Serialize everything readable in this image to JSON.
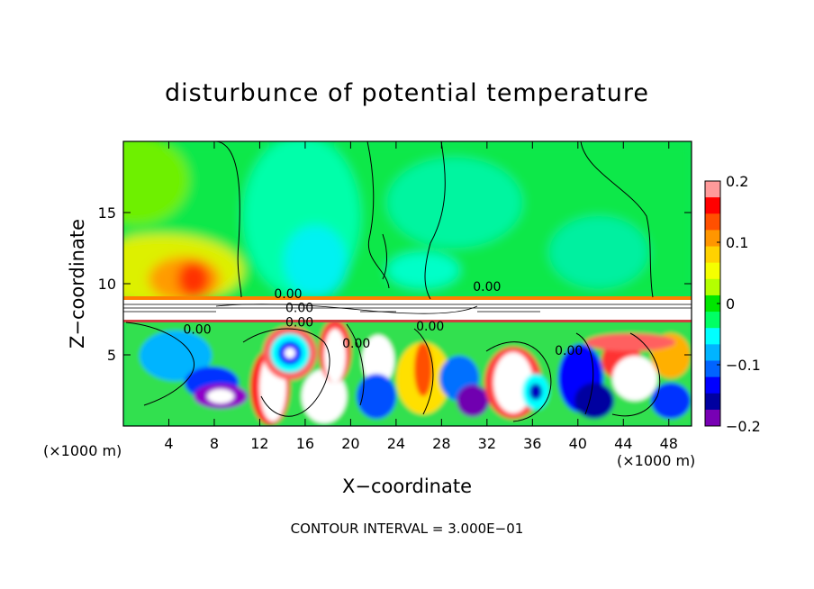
{
  "chart_data": {
    "type": "heatmap",
    "title": "disturbunce of potential temperature",
    "xlabel": "X−coordinate",
    "ylabel": "Z−coordinate",
    "x_unit_left": "(×1000 m)",
    "x_unit_right": "(×1000 m)",
    "xlim": [
      0,
      50
    ],
    "ylim": [
      0,
      20
    ],
    "xticks": [
      {
        "value": 4,
        "label": "4"
      },
      {
        "value": 8,
        "label": "8"
      },
      {
        "value": 12,
        "label": "12"
      },
      {
        "value": 16,
        "label": "16"
      },
      {
        "value": 20,
        "label": "20"
      },
      {
        "value": 24,
        "label": "24"
      },
      {
        "value": 28,
        "label": "28"
      },
      {
        "value": 32,
        "label": "32"
      },
      {
        "value": 36,
        "label": "36"
      },
      {
        "value": 40,
        "label": "40"
      },
      {
        "value": 44,
        "label": "44"
      },
      {
        "value": 48,
        "label": "48"
      }
    ],
    "yticks": [
      {
        "value": 5,
        "label": "5"
      },
      {
        "value": 10,
        "label": "10"
      },
      {
        "value": 15,
        "label": "15"
      }
    ],
    "colorbar": {
      "min": -0.2,
      "max": 0.2,
      "ticks": [
        {
          "value": 0.2,
          "label": "0.2"
        },
        {
          "value": 0.1,
          "label": "0.1"
        },
        {
          "value": 0,
          "label": "0"
        },
        {
          "value": -0.1,
          "label": "−0.1"
        },
        {
          "value": -0.2,
          "label": "−0.2"
        }
      ],
      "colors": [
        "#ff9a9a",
        "#ff0000",
        "#ff5000",
        "#ff9600",
        "#ffd200",
        "#f5ff00",
        "#b4ff00",
        "#00e600",
        "#00ff64",
        "#00ffff",
        "#00b4ff",
        "#0064ff",
        "#0000ff",
        "#0000a0",
        "#7800b4"
      ]
    },
    "contour_labels": [
      {
        "x": 32.0,
        "y": 9.5,
        "text": "0.00"
      },
      {
        "x": 14.5,
        "y": 9.0,
        "text": "0.00"
      },
      {
        "x": 15.5,
        "y": 8.0,
        "text": "0.00"
      },
      {
        "x": 15.5,
        "y": 7.0,
        "text": "0.00"
      },
      {
        "x": 6.5,
        "y": 6.5,
        "text": "0.00"
      },
      {
        "x": 20.5,
        "y": 5.5,
        "text": "0.00"
      },
      {
        "x": 27.0,
        "y": 6.7,
        "text": "0.00"
      },
      {
        "x": 39.2,
        "y": 5.0,
        "text": "0.00"
      }
    ],
    "contour_interval_text": "CONTOUR INTERVAL = 3.000E−01"
  }
}
